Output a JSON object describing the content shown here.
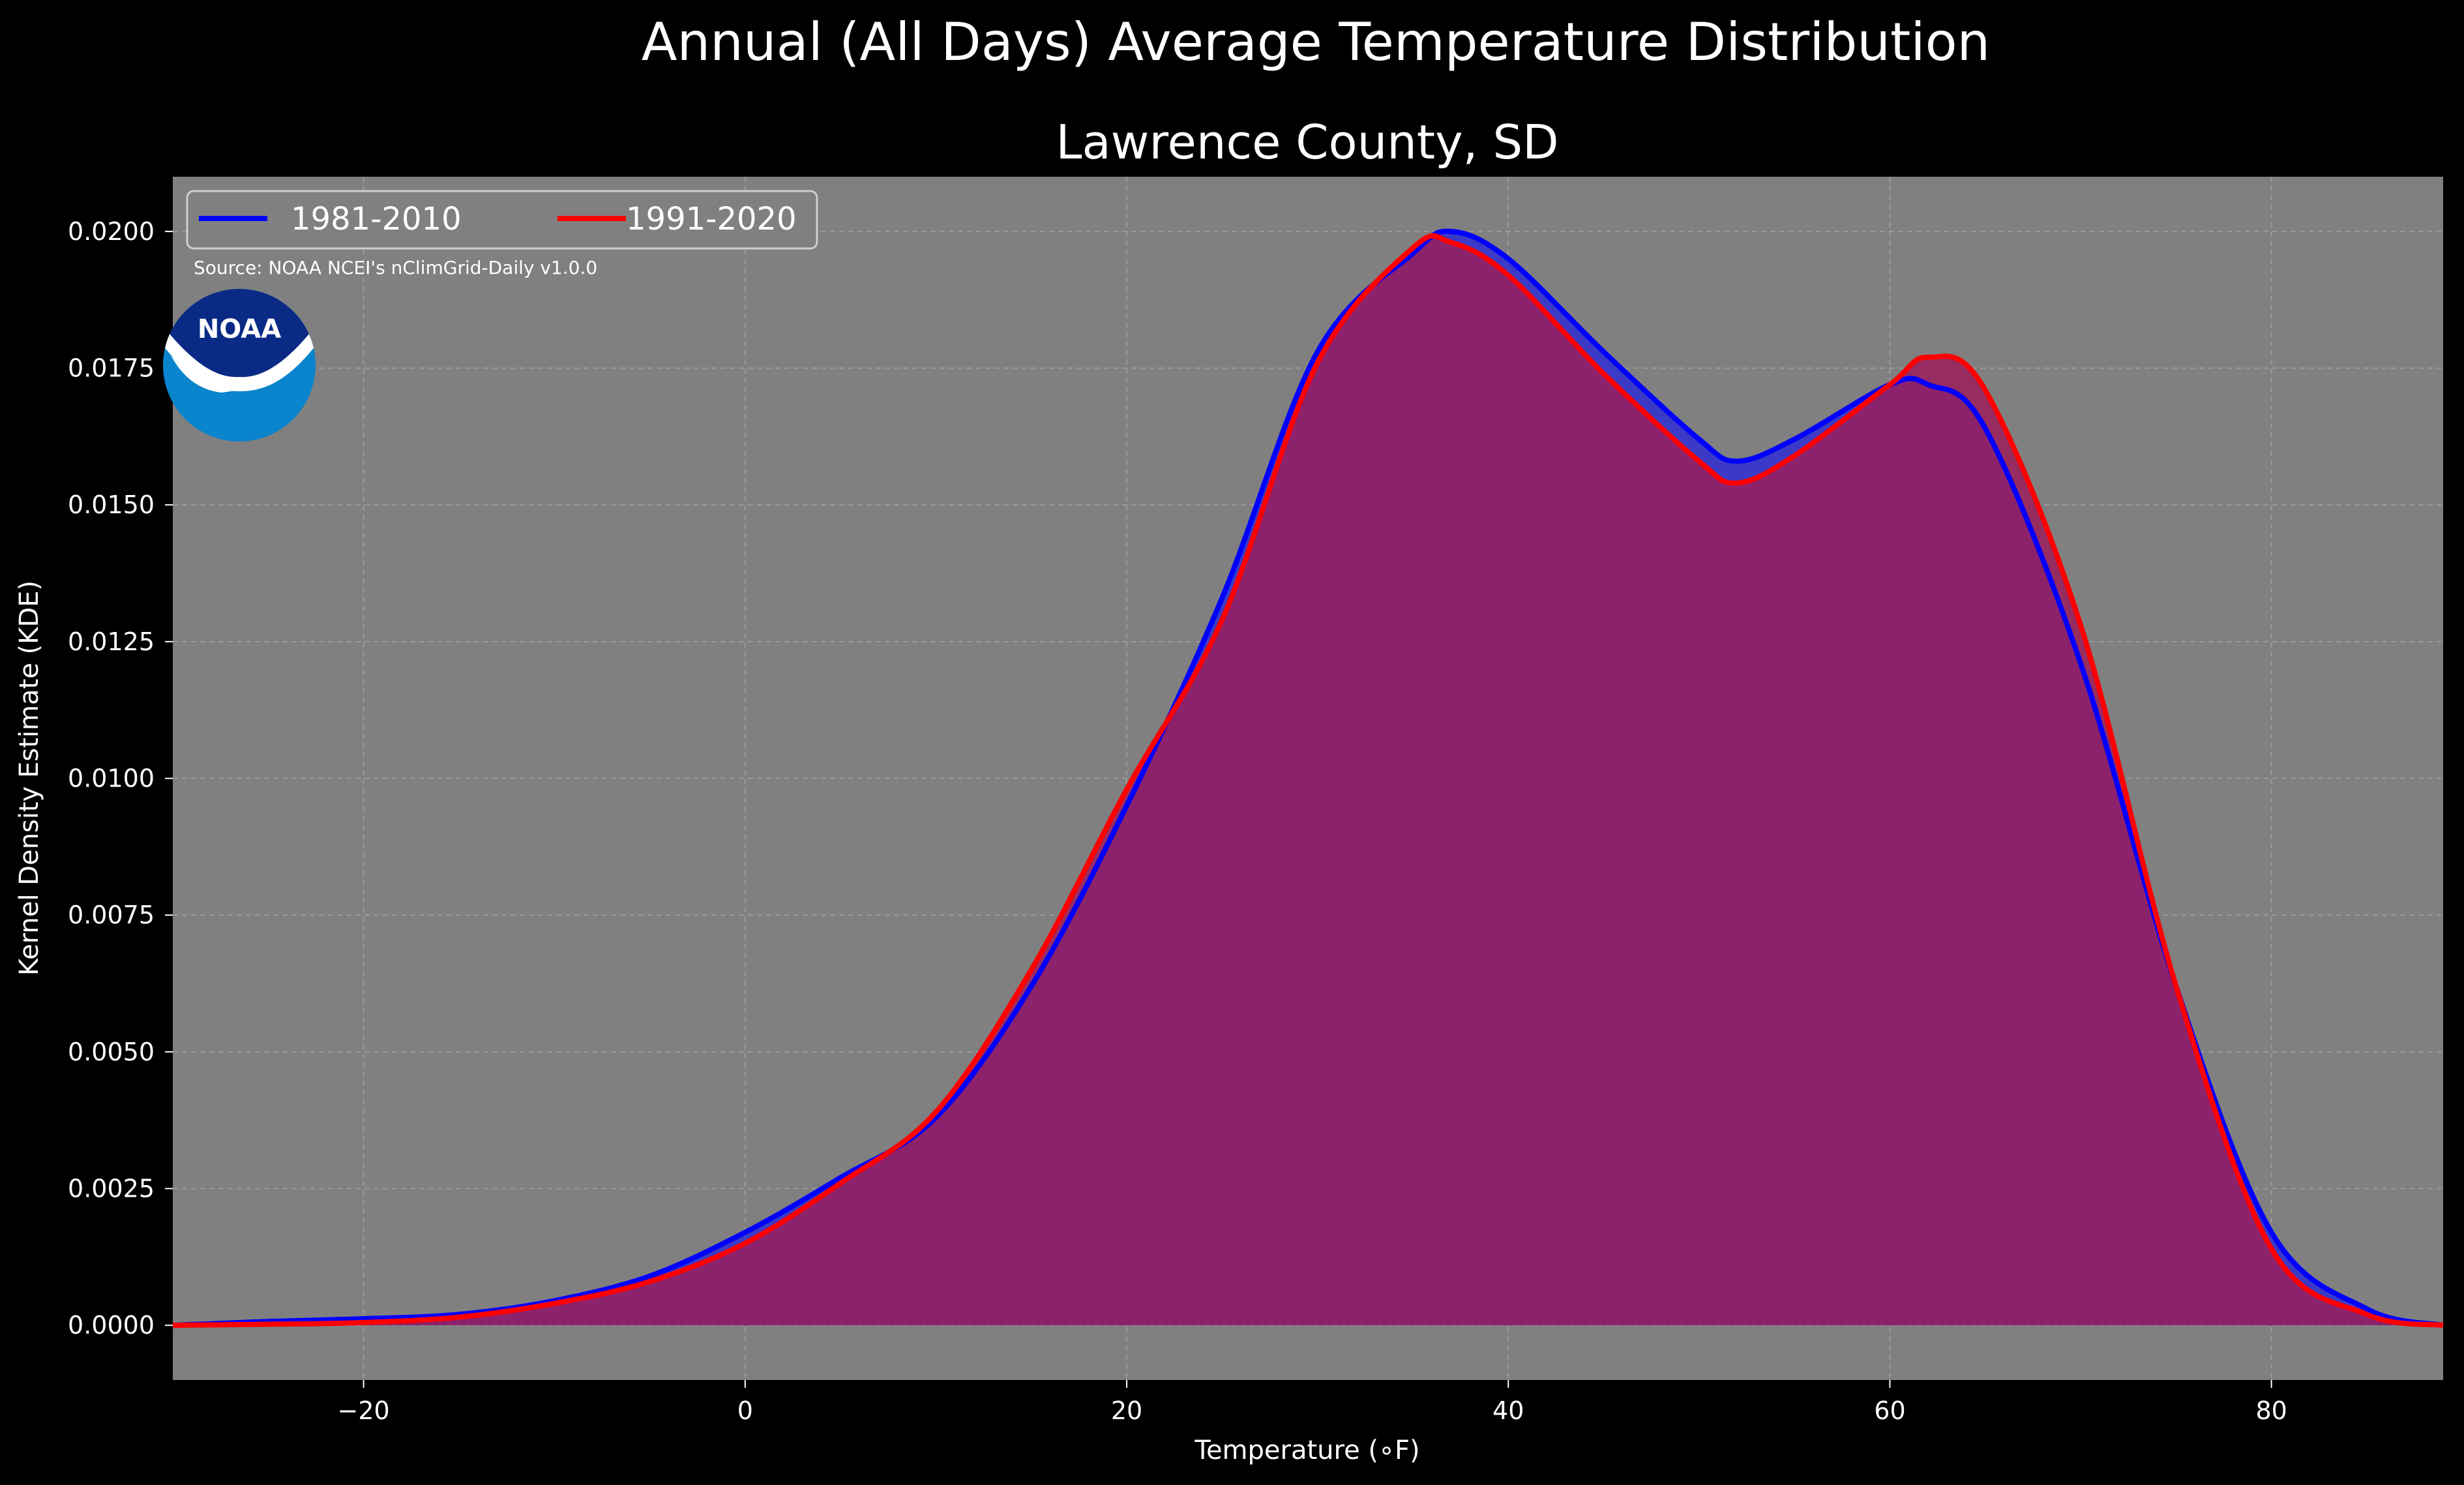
{
  "colors": {
    "background": "#000000",
    "plot_background": "#808080",
    "series_1981": "#0000ff",
    "series_1991": "#ff0000",
    "fill_overlap": "#9b1d5c",
    "noaa_dark": "#0a2a86",
    "noaa_light": "#0a84cc"
  },
  "logo": {
    "text": "NOAA",
    "icon": "noaa-logo-icon"
  },
  "source": "Source: NOAA NCEI's nClimGrid-Daily v1.0.0",
  "chart_data": {
    "type": "area",
    "title": "Annual (All Days) Average Temperature Distribution",
    "subtitle": "Lawrence County, SD",
    "xlabel": "Temperature (∘F)",
    "ylabel": "Kernel Density Estimate (KDE)",
    "xlim": [
      -30,
      89
    ],
    "ylim": [
      -0.001,
      0.021
    ],
    "xticks": [
      -20,
      0,
      20,
      40,
      60,
      80
    ],
    "xtick_labels": [
      "−20",
      "0",
      "20",
      "40",
      "60",
      "80"
    ],
    "yticks": [
      0,
      0.0025,
      0.005,
      0.0075,
      0.01,
      0.0125,
      0.015,
      0.0175,
      0.02
    ],
    "ytick_labels": [
      "0.0000",
      "0.0025",
      "0.0050",
      "0.0075",
      "0.0100",
      "0.0125",
      "0.0150",
      "0.0175",
      "0.0200"
    ],
    "grid": true,
    "legend_position": "upper-left",
    "series": [
      {
        "name": "1981-2010",
        "x": [
          -30,
          -25,
          -20,
          -15,
          -10,
          -5,
          0,
          5,
          10,
          15,
          20,
          25,
          30,
          35,
          37,
          40,
          45,
          50,
          52,
          55,
          60,
          62,
          65,
          70,
          75,
          80,
          85,
          89
        ],
        "y": [
          0,
          7e-05,
          0.00012,
          0.0002,
          0.00045,
          0.0009,
          0.0017,
          0.0027,
          0.0038,
          0.0062,
          0.0095,
          0.0133,
          0.0178,
          0.0196,
          0.02,
          0.0195,
          0.0178,
          0.0162,
          0.0158,
          0.0162,
          0.0172,
          0.0172,
          0.0164,
          0.0121,
          0.0062,
          0.0017,
          0.0003,
          0
        ]
      },
      {
        "name": "1991-2020",
        "x": [
          -30,
          -25,
          -20,
          -15,
          -10,
          -5,
          0,
          5,
          10,
          15,
          20,
          25,
          30,
          35,
          37,
          40,
          45,
          50,
          52,
          55,
          60,
          62,
          65,
          70,
          75,
          80,
          85,
          89
        ],
        "y": [
          0,
          2e-05,
          5e-05,
          0.00015,
          0.0004,
          0.0008,
          0.0015,
          0.0026,
          0.0039,
          0.0065,
          0.0098,
          0.0129,
          0.0176,
          0.0197,
          0.0198,
          0.0192,
          0.0174,
          0.0158,
          0.0154,
          0.0159,
          0.0172,
          0.0177,
          0.0171,
          0.0128,
          0.0062,
          0.0014,
          0.0002,
          0
        ]
      }
    ]
  }
}
